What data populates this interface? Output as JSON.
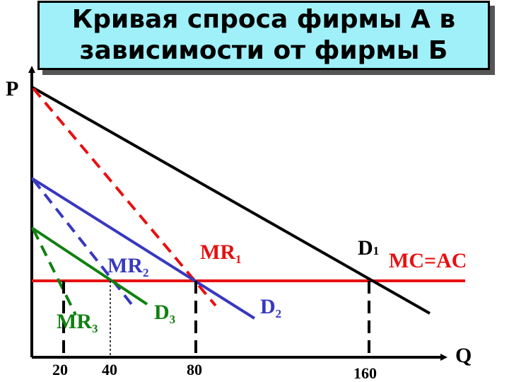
{
  "title": {
    "line1": "Кривая спроса фирмы А в",
    "line2": "зависимости от фирмы  Б"
  },
  "axes": {
    "y_label": "P",
    "x_label": "Q"
  },
  "x_ticks": [
    "20",
    "40",
    "80",
    "160"
  ],
  "curves": {
    "d1": {
      "base": "D",
      "sub": "1"
    },
    "mr1": {
      "base": "MR",
      "sub": "1"
    },
    "d2": {
      "base": "D",
      "sub": "2"
    },
    "mr2": {
      "base": "MR",
      "sub": "2"
    },
    "d3": {
      "base": "D",
      "sub": "3"
    },
    "mr3": {
      "base": "MR",
      "sub": "3"
    },
    "mc": "MC=AC"
  },
  "colors": {
    "d1": "#000000",
    "mr1": "#e81010",
    "mc": "#e81010",
    "d2": "#3838c0",
    "mr2": "#3838c0",
    "d3": "#108010",
    "mr3": "#108010"
  }
}
